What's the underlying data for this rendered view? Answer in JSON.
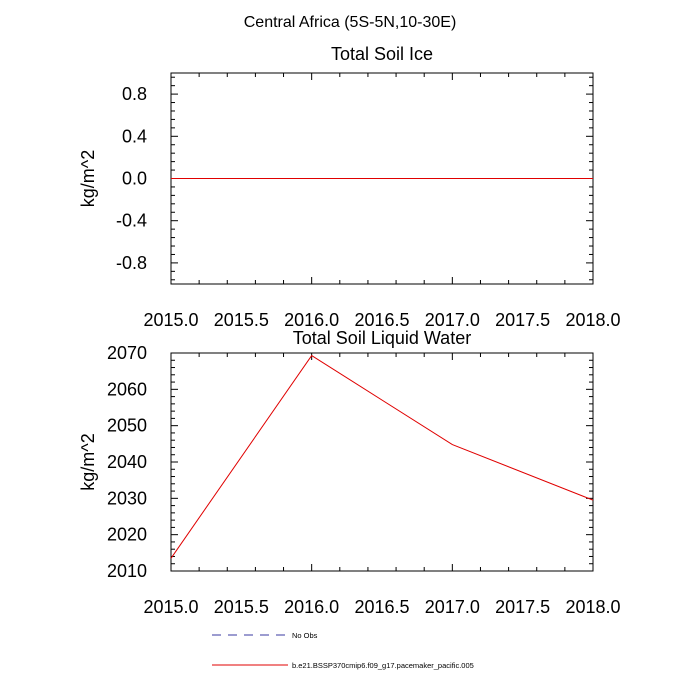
{
  "figure": {
    "suptitle": "Central Africa (5S-5N,10-30E)"
  },
  "legend": {
    "items": [
      {
        "label": "No Obs",
        "color": "#3a3aa0",
        "style": "dashed"
      },
      {
        "label": "b.e21.BSSP370cmip6.f09_g17.pacemaker_pacific.005",
        "color": "#e00000",
        "style": "solid"
      }
    ]
  },
  "chart_data": [
    {
      "type": "line",
      "title": "Total Soil Ice",
      "ylabel": "kg/m^2",
      "xlabel": "",
      "xlim": [
        2015.0,
        2018.0
      ],
      "ylim": [
        -1.0,
        1.0
      ],
      "x_ticks": [
        "2015.0",
        "2015.5",
        "2016.0",
        "2016.5",
        "2017.0",
        "2017.5",
        "2018.0"
      ],
      "y_ticks": [
        "0.8",
        "0.4",
        "0.0",
        "-0.4",
        "-0.8"
      ],
      "series": [
        {
          "name": "b.e21.BSSP370cmip6.f09_g17.pacemaker_pacific.005",
          "color": "#e00000",
          "x": [
            2015,
            2016,
            2017,
            2018
          ],
          "y": [
            0.0,
            0.0,
            0.0,
            0.0
          ]
        }
      ]
    },
    {
      "type": "line",
      "title": "Total Soil Liquid Water",
      "ylabel": "kg/m^2",
      "xlabel": "",
      "xlim": [
        2015.0,
        2018.0
      ],
      "ylim": [
        2010,
        2070
      ],
      "x_ticks": [
        "2015.0",
        "2015.5",
        "2016.0",
        "2016.5",
        "2017.0",
        "2017.5",
        "2018.0"
      ],
      "y_ticks": [
        "2070",
        "2060",
        "2050",
        "2040",
        "2030",
        "2020",
        "2010"
      ],
      "series": [
        {
          "name": "b.e21.BSSP370cmip6.f09_g17.pacemaker_pacific.005",
          "color": "#e00000",
          "x": [
            2015,
            2016,
            2017,
            2018
          ],
          "y": [
            2013.5,
            2069.3,
            2044.8,
            2029.5
          ]
        }
      ]
    }
  ]
}
